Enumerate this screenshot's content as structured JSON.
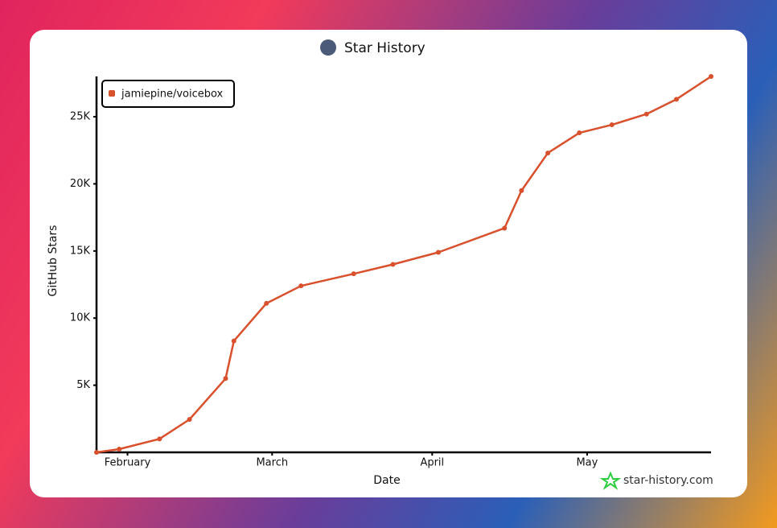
{
  "chart_data": {
    "type": "line",
    "title": "Star History",
    "xlabel": "Date",
    "ylabel": "GitHub Stars",
    "watermark": "star-history.com",
    "x": [
      26,
      30.4,
      38.2,
      44,
      51,
      52.6,
      58.9,
      65.6,
      75.8,
      83.4,
      92.2,
      105,
      108.3,
      113.4,
      119.5,
      125.8,
      132.5,
      138.3,
      145
    ],
    "series": [
      {
        "name": "jamiepine/voicebox",
        "color": "#d9502d",
        "values": [
          0,
          240,
          1000,
          2450,
          5500,
          8300,
          11100,
          12400,
          13300,
          14000,
          14900,
          16700,
          19500,
          22300,
          23800,
          24400,
          25200,
          26300,
          28000
        ]
      }
    ],
    "xlim": [
      26,
      145
    ],
    "xticks": [
      {
        "value": 32,
        "label": "February"
      },
      {
        "value": 60,
        "label": "March"
      },
      {
        "value": 91,
        "label": "April"
      },
      {
        "value": 121,
        "label": "May"
      }
    ],
    "ylim": [
      0,
      28000
    ],
    "yticks": [
      {
        "value": 5000,
        "label": "5K"
      },
      {
        "value": 10000,
        "label": "10K"
      },
      {
        "value": 15000,
        "label": "15K"
      },
      {
        "value": 20000,
        "label": "20K"
      },
      {
        "value": 25000,
        "label": "25K"
      }
    ],
    "legend": "top-left"
  }
}
